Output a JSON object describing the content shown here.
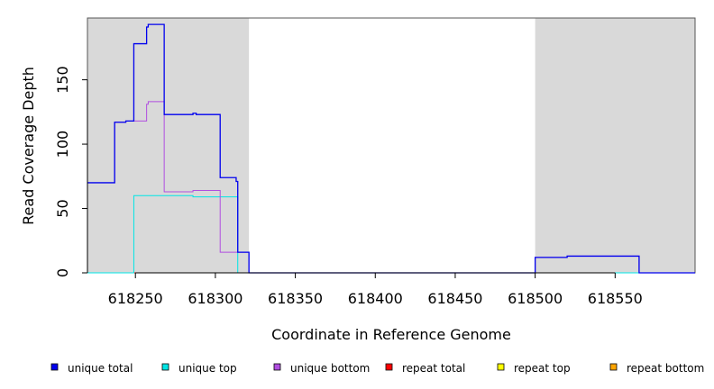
{
  "chart_data": {
    "type": "line",
    "xlabel": "Coordinate in Reference Genome",
    "ylabel": "Read Coverage Depth",
    "xlim": [
      618220,
      618600
    ],
    "ylim": [
      0,
      198
    ],
    "x_ticks": [
      618250,
      618300,
      618350,
      618400,
      618450,
      618500,
      618550
    ],
    "y_ticks": [
      0,
      50,
      100,
      150
    ],
    "shaded_regions": [
      [
        618220,
        618321
      ],
      [
        618500,
        618600
      ]
    ],
    "shade_color": "#d9d9d9",
    "series": [
      {
        "name": "unique total",
        "color": "#0000ee",
        "steps": [
          [
            618220,
            70
          ],
          [
            618237,
            117
          ],
          [
            618244,
            118
          ],
          [
            618249,
            178
          ],
          [
            618257,
            191
          ],
          [
            618258,
            193
          ],
          [
            618268,
            123
          ],
          [
            618286,
            124
          ],
          [
            618288,
            123
          ],
          [
            618303,
            74
          ],
          [
            618313,
            71
          ],
          [
            618314,
            16
          ],
          [
            618321,
            0
          ],
          [
            618500,
            12
          ],
          [
            618520,
            13
          ],
          [
            618565,
            0
          ],
          [
            618600,
            0
          ]
        ]
      },
      {
        "name": "unique top",
        "color": "#00e5e5",
        "steps": [
          [
            618220,
            0
          ],
          [
            618249,
            60
          ],
          [
            618286,
            59
          ],
          [
            618314,
            0
          ],
          [
            618600,
            0
          ]
        ]
      },
      {
        "name": "unique bottom",
        "color": "#b04ee0",
        "steps": [
          [
            618220,
            70
          ],
          [
            618237,
            117
          ],
          [
            618244,
            118
          ],
          [
            618257,
            131
          ],
          [
            618258,
            133
          ],
          [
            618268,
            63
          ],
          [
            618286,
            64
          ],
          [
            618303,
            16
          ],
          [
            618321,
            0
          ],
          [
            618500,
            12
          ],
          [
            618520,
            13
          ],
          [
            618565,
            0
          ],
          [
            618600,
            0
          ]
        ]
      },
      {
        "name": "repeat total",
        "color": "#ff0000",
        "steps": [
          [
            618220,
            0
          ],
          [
            618600,
            0
          ]
        ]
      },
      {
        "name": "repeat top",
        "color": "#ffff00",
        "steps": [
          [
            618220,
            0
          ],
          [
            618600,
            0
          ]
        ]
      },
      {
        "name": "repeat bottom",
        "color": "#ffa500",
        "steps": [
          [
            618220,
            0
          ],
          [
            618314,
            0
          ]
        ]
      }
    ],
    "legend_placement": "bottom"
  }
}
